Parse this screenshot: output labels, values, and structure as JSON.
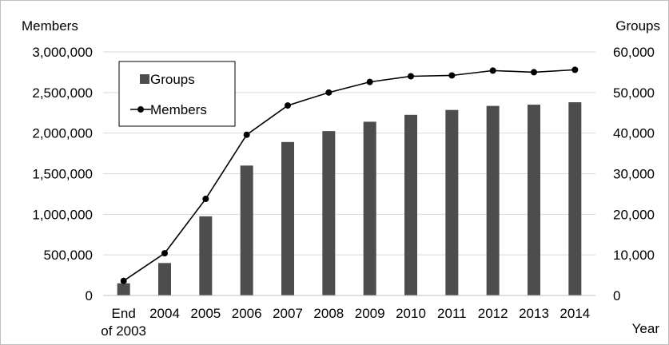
{
  "chart_data": {
    "type": "bar+line",
    "title": "",
    "categories": [
      [
        "End",
        "of 2003"
      ],
      [
        "2004"
      ],
      [
        "2005"
      ],
      [
        "2006"
      ],
      [
        "2007"
      ],
      [
        "2008"
      ],
      [
        "2009"
      ],
      [
        "2010"
      ],
      [
        "2011"
      ],
      [
        "2012"
      ],
      [
        "2013"
      ],
      [
        "2014"
      ]
    ],
    "xlabel": "Year",
    "y_left": {
      "label": "Members",
      "lim": [
        0,
        3000000
      ],
      "ticks": [
        0,
        500000,
        1000000,
        1500000,
        2000000,
        2500000,
        3000000
      ],
      "tick_labels": [
        "0",
        "500,000",
        "1,000,000",
        "1,500,000",
        "2,000,000",
        "2,500,000",
        "3,000,000"
      ]
    },
    "y_right": {
      "label": "Groups",
      "lim": [
        0,
        60000
      ],
      "ticks": [
        0,
        10000,
        20000,
        30000,
        40000,
        50000,
        60000
      ],
      "tick_labels": [
        "0",
        "10,000",
        "20,000",
        "30,000",
        "40,000",
        "50,000",
        "60,000"
      ]
    },
    "series": [
      {
        "name": "Groups",
        "type": "bar",
        "axis": "right",
        "color": "#4d4d4d",
        "values": [
          3000,
          8000,
          19500,
          32000,
          37800,
          40500,
          42800,
          44500,
          45700,
          46700,
          47000,
          47600
        ]
      },
      {
        "name": "Members",
        "type": "line",
        "axis": "left",
        "color": "#000000",
        "values": [
          180000,
          520000,
          1190000,
          1980000,
          2340000,
          2500000,
          2630000,
          2700000,
          2710000,
          2770000,
          2750000,
          2780000
        ]
      }
    ],
    "legend": {
      "position": "top-left",
      "entries": [
        "Groups",
        "Members"
      ]
    },
    "grid": {
      "horizontal": true,
      "color": "#d9d9d9"
    }
  }
}
